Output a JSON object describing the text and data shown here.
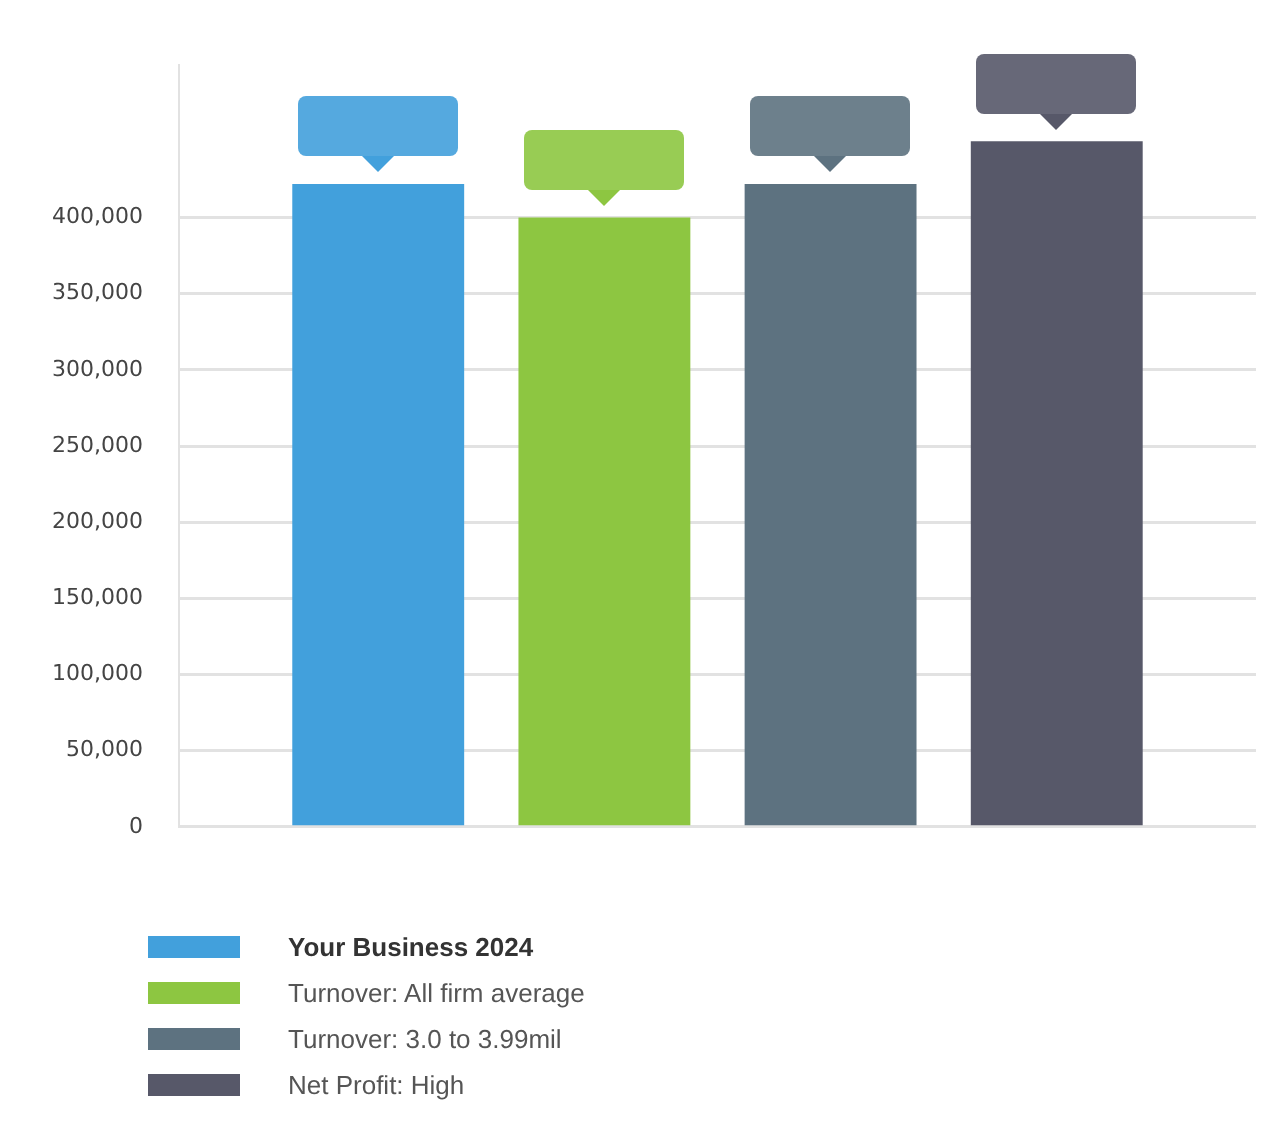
{
  "chart_data": {
    "type": "bar",
    "categories": [
      null
    ],
    "series": [
      {
        "name": "Your Business 2024",
        "color": "#42a0dc",
        "values": [
          422000
        ]
      },
      {
        "name": "Turnover: All firm average",
        "color": "#8dc641",
        "values": [
          400000
        ]
      },
      {
        "name": "Turnover: 3.0 to 3.99mil",
        "color": "#5d7280",
        "values": [
          422000
        ]
      },
      {
        "name": "Net Profit: High",
        "color": "#575869",
        "values": [
          450000
        ]
      }
    ],
    "ylim": [
      0,
      500000
    ],
    "yticks": [
      0,
      {
        "value": 50000,
        "label": "50,000"
      },
      {
        "value": 100000,
        "label": "100,000"
      },
      {
        "value": 150000,
        "label": "150,000"
      },
      {
        "value": 200000,
        "label": "200,000"
      },
      {
        "value": 250000,
        "label": "250,000"
      },
      {
        "value": 300000,
        "label": "300,000"
      },
      {
        "value": 350000,
        "label": "350,000"
      },
      {
        "value": 400000,
        "label": "400,000"
      }
    ],
    "grid": "y",
    "legend": "bottom",
    "tick_labels": "y"
  }
}
